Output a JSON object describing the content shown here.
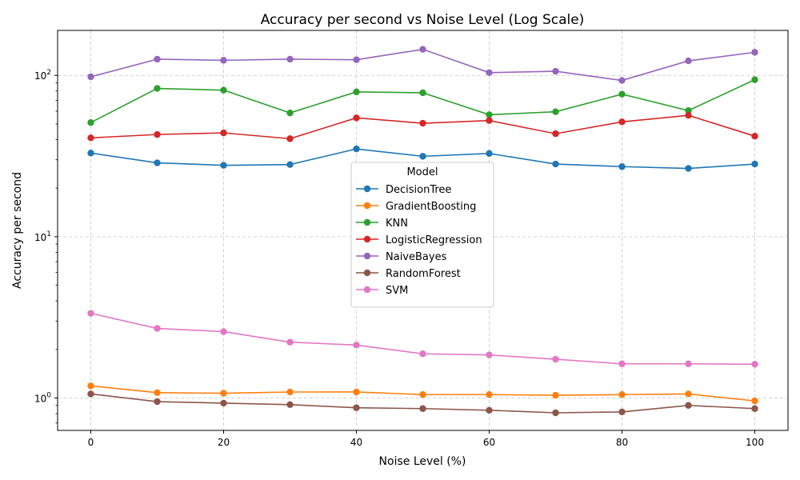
{
  "chart_data": {
    "type": "line",
    "title": "Accuracy per second vs Noise Level (Log Scale)",
    "xlabel": "Noise Level (%)",
    "ylabel": "Accuracy per second",
    "yscale": "log",
    "xlim": [
      -5,
      105
    ],
    "ylim": [
      0.63,
      190
    ],
    "xticks": [
      0,
      20,
      40,
      60,
      80,
      100
    ],
    "yticks": [
      {
        "value": 1,
        "base": "10",
        "exp": "0"
      },
      {
        "value": 10,
        "base": "10",
        "exp": "1"
      },
      {
        "value": 100,
        "base": "10",
        "exp": "2"
      }
    ],
    "grid": true,
    "legend_title": "Model",
    "legend_position": "center",
    "x": [
      0,
      10,
      20,
      30,
      40,
      50,
      60,
      70,
      80,
      90,
      100
    ],
    "series": [
      {
        "name": "DecisionTree",
        "color": "#1f77b4",
        "values": [
          33.0,
          28.7,
          27.7,
          28.0,
          35.0,
          31.5,
          32.8,
          28.2,
          27.2,
          26.5,
          28.2
        ]
      },
      {
        "name": "GradientBoosting",
        "color": "#ff7f0e",
        "values": [
          1.19,
          1.08,
          1.07,
          1.09,
          1.09,
          1.05,
          1.05,
          1.04,
          1.05,
          1.06,
          0.96
        ]
      },
      {
        "name": "KNN",
        "color": "#2ca02c",
        "values": [
          51.0,
          83.0,
          81.0,
          58.5,
          79.0,
          78.0,
          57.0,
          59.5,
          76.5,
          60.5,
          94.0
        ]
      },
      {
        "name": "LogisticRegression",
        "color": "#d62728",
        "values": [
          41.0,
          43.0,
          44.0,
          40.5,
          54.5,
          50.5,
          52.5,
          43.5,
          51.5,
          56.5,
          42.0
        ]
      },
      {
        "name": "NaiveBayes",
        "color": "#9467bd",
        "values": [
          98.0,
          126.0,
          124.0,
          126.0,
          125.0,
          145.0,
          104.0,
          106.0,
          93.0,
          123.0,
          139.0
        ]
      },
      {
        "name": "RandomForest",
        "color": "#8c564b",
        "values": [
          1.06,
          0.95,
          0.93,
          0.91,
          0.87,
          0.86,
          0.84,
          0.81,
          0.82,
          0.9,
          0.86
        ]
      },
      {
        "name": "SVM",
        "color": "#e377c2",
        "values": [
          3.35,
          2.7,
          2.58,
          2.22,
          2.13,
          1.88,
          1.85,
          1.74,
          1.63,
          1.63,
          1.62
        ]
      }
    ]
  }
}
